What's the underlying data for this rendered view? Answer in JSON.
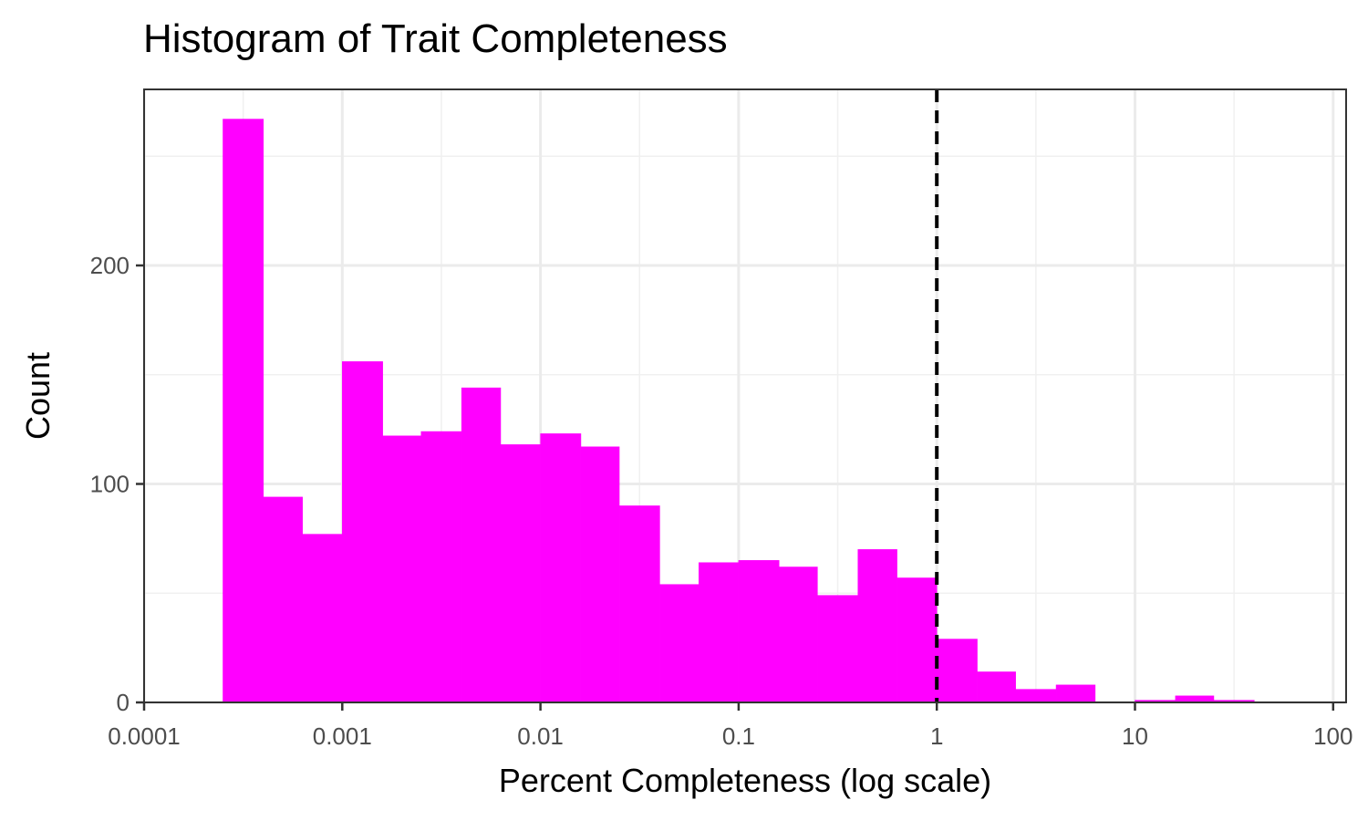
{
  "chart_data": {
    "type": "bar",
    "title": "Histogram of Trait Completeness",
    "xlabel": "Percent Completeness (log scale)",
    "ylabel": "Count",
    "x_scale": "log10",
    "xlim": [
      0.0001,
      100
    ],
    "ylim": [
      0,
      270
    ],
    "x_ticks": [
      {
        "value": 0.0001,
        "label": "0.0001"
      },
      {
        "value": 0.001,
        "label": "0.001"
      },
      {
        "value": 0.01,
        "label": "0.01"
      },
      {
        "value": 0.1,
        "label": "0.1"
      },
      {
        "value": 1,
        "label": "1"
      },
      {
        "value": 10,
        "label": "10"
      },
      {
        "value": 100,
        "label": "100"
      }
    ],
    "y_ticks": [
      {
        "value": 0,
        "label": "0"
      },
      {
        "value": 100,
        "label": "100"
      },
      {
        "value": 200,
        "label": "200"
      }
    ],
    "bins": [
      {
        "from": 0.00025,
        "to": 0.0004,
        "count": 267
      },
      {
        "from": 0.0004,
        "to": 0.00063,
        "count": 94
      },
      {
        "from": 0.00063,
        "to": 0.001,
        "count": 77
      },
      {
        "from": 0.001,
        "to": 0.0016,
        "count": 156
      },
      {
        "from": 0.0016,
        "to": 0.0025,
        "count": 122
      },
      {
        "from": 0.0025,
        "to": 0.004,
        "count": 124
      },
      {
        "from": 0.004,
        "to": 0.0063,
        "count": 144
      },
      {
        "from": 0.0063,
        "to": 0.01,
        "count": 118
      },
      {
        "from": 0.01,
        "to": 0.016,
        "count": 123
      },
      {
        "from": 0.016,
        "to": 0.025,
        "count": 117
      },
      {
        "from": 0.025,
        "to": 0.04,
        "count": 90
      },
      {
        "from": 0.04,
        "to": 0.063,
        "count": 54
      },
      {
        "from": 0.063,
        "to": 0.1,
        "count": 64
      },
      {
        "from": 0.1,
        "to": 0.16,
        "count": 65
      },
      {
        "from": 0.16,
        "to": 0.25,
        "count": 62
      },
      {
        "from": 0.25,
        "to": 0.4,
        "count": 49
      },
      {
        "from": 0.4,
        "to": 0.63,
        "count": 70
      },
      {
        "from": 0.63,
        "to": 1,
        "count": 57
      },
      {
        "from": 1,
        "to": 1.6,
        "count": 29
      },
      {
        "from": 1.6,
        "to": 2.5,
        "count": 14
      },
      {
        "from": 2.5,
        "to": 4,
        "count": 6
      },
      {
        "from": 4,
        "to": 6.3,
        "count": 8
      },
      {
        "from": 6.3,
        "to": 10,
        "count": 0
      },
      {
        "from": 10,
        "to": 16,
        "count": 1
      },
      {
        "from": 16,
        "to": 25,
        "count": 3
      },
      {
        "from": 25,
        "to": 40,
        "count": 1
      }
    ],
    "reference_line": {
      "x": 1,
      "style": "dashed",
      "color": "#000000"
    },
    "bar_color": "#ff00ff",
    "grid": true,
    "legend": "none"
  }
}
